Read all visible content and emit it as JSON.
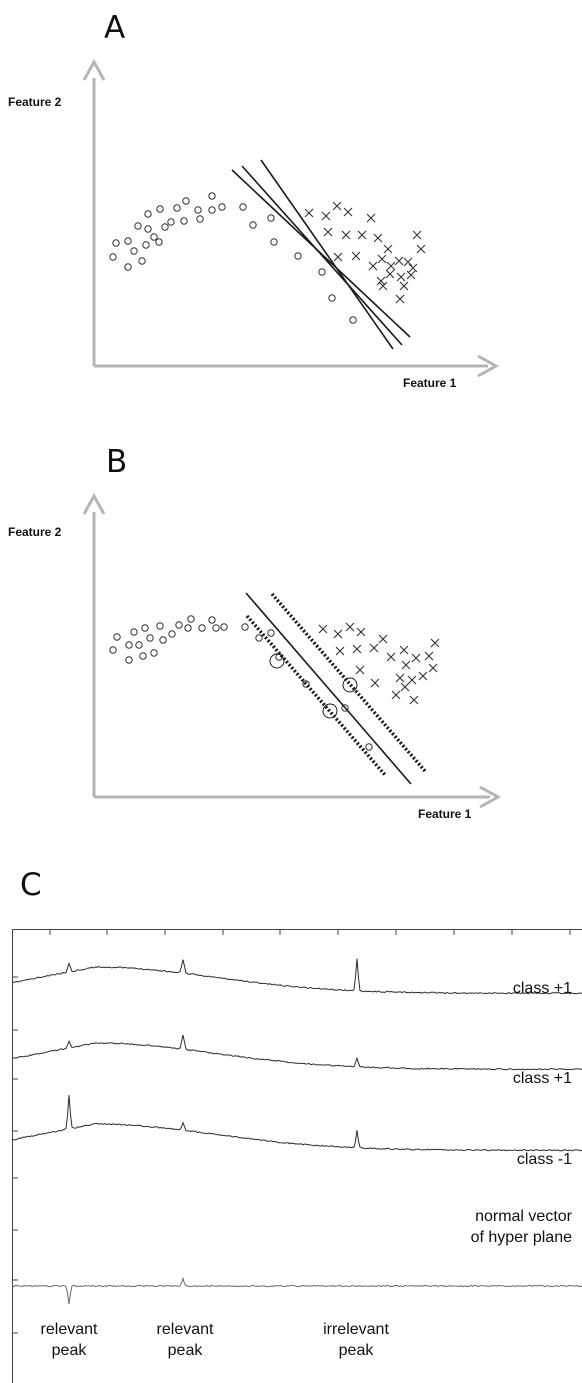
{
  "panel_a": {
    "letter": "A",
    "y_axis_label": "Feature 2",
    "x_axis_label": "Feature 1"
  },
  "panel_b": {
    "letter": "B",
    "y_axis_label": "Feature 2",
    "x_axis_label": "Feature 1"
  },
  "panel_c": {
    "letter": "C",
    "traces": [
      {
        "label": "class +1"
      },
      {
        "label": "class +1"
      },
      {
        "label": "class -1"
      }
    ],
    "normal_vector_label": [
      "normal vector",
      "of hyper plane"
    ],
    "peak_labels": [
      [
        "relevant",
        "peak"
      ],
      [
        "relevant",
        "peak"
      ],
      [
        "irrelevant",
        "peak"
      ]
    ]
  },
  "colors": {
    "axis": "#b5b5b5",
    "ink": "#1a1a1a",
    "trace": "#333333"
  }
}
